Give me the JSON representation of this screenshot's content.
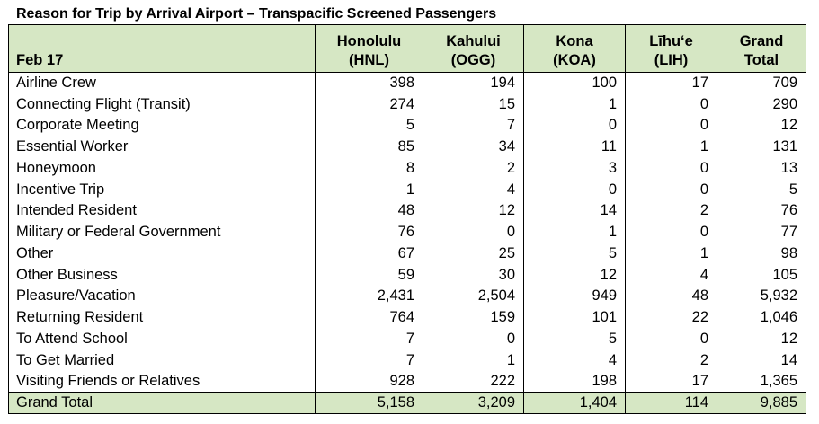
{
  "title": "Reason for Trip by Arrival Airport – Transpacific Screened Passengers",
  "header": {
    "label": "Feb 17",
    "columns": [
      {
        "line1": "Honolulu",
        "line2": "(HNL)"
      },
      {
        "line1": "Kahului",
        "line2": "(OGG)"
      },
      {
        "line1": "Kona",
        "line2": "(KOA)"
      },
      {
        "line1": "Līhu‘e",
        "line2": "(LIH)"
      },
      {
        "line1": "Grand",
        "line2": "Total"
      }
    ]
  },
  "rows": [
    {
      "reason": "Airline Crew",
      "values": [
        "398",
        "194",
        "100",
        "17",
        "709"
      ]
    },
    {
      "reason": "Connecting Flight (Transit)",
      "values": [
        "274",
        "15",
        "1",
        "0",
        "290"
      ]
    },
    {
      "reason": "Corporate Meeting",
      "values": [
        "5",
        "7",
        "0",
        "0",
        "12"
      ]
    },
    {
      "reason": "Essential Worker",
      "values": [
        "85",
        "34",
        "11",
        "1",
        "131"
      ]
    },
    {
      "reason": "Honeymoon",
      "values": [
        "8",
        "2",
        "3",
        "0",
        "13"
      ]
    },
    {
      "reason": "Incentive Trip",
      "values": [
        "1",
        "4",
        "0",
        "0",
        "5"
      ]
    },
    {
      "reason": "Intended Resident",
      "values": [
        "48",
        "12",
        "14",
        "2",
        "76"
      ]
    },
    {
      "reason": "Military or Federal Government",
      "values": [
        "76",
        "0",
        "1",
        "0",
        "77"
      ]
    },
    {
      "reason": "Other",
      "values": [
        "67",
        "25",
        "5",
        "1",
        "98"
      ]
    },
    {
      "reason": "Other Business",
      "values": [
        "59",
        "30",
        "12",
        "4",
        "105"
      ]
    },
    {
      "reason": "Pleasure/Vacation",
      "values": [
        "2,431",
        "2,504",
        "949",
        "48",
        "5,932"
      ]
    },
    {
      "reason": "Returning Resident",
      "values": [
        "764",
        "159",
        "101",
        "22",
        "1,046"
      ]
    },
    {
      "reason": "To Attend School",
      "values": [
        "7",
        "0",
        "5",
        "0",
        "12"
      ]
    },
    {
      "reason": "To Get Married",
      "values": [
        "7",
        "1",
        "4",
        "2",
        "14"
      ]
    },
    {
      "reason": "Visiting Friends or Relatives",
      "values": [
        "928",
        "222",
        "198",
        "17",
        "1,365"
      ]
    }
  ],
  "footer": {
    "label": "Grand Total",
    "values": [
      "5,158",
      "3,209",
      "1,404",
      "114",
      "9,885"
    ]
  },
  "colors": {
    "header_bg": "#d6e7c4",
    "border": "#000000"
  }
}
